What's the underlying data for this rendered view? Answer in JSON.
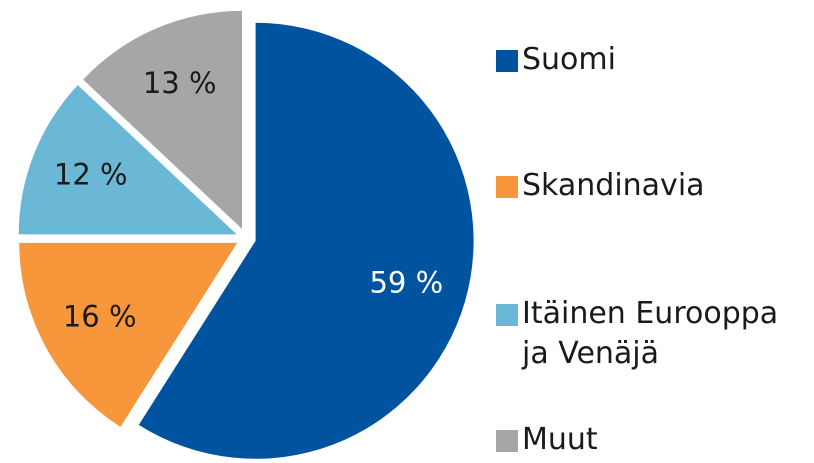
{
  "chart_data": {
    "type": "pie",
    "categories": [
      "Suomi",
      "Skandinavia",
      "Itäinen Eurooppa ja Venäjä",
      "Muut"
    ],
    "values": [
      59,
      16,
      12,
      13
    ],
    "value_labels": [
      "59 %",
      "16 %",
      "12 %",
      "13 %"
    ],
    "colors": [
      "#00539f",
      "#f7963b",
      "#6bb7d6",
      "#a6a6a6"
    ],
    "legend": "right"
  }
}
